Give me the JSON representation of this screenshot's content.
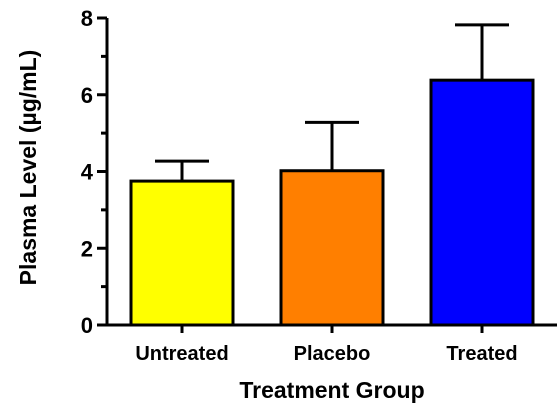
{
  "chart_data": {
    "type": "bar",
    "xlabel": "Treatment Group",
    "ylabel": "Plasma Level (µg/mL)",
    "categories": [
      "Untreated",
      "Placebo",
      "Treated"
    ],
    "values": [
      3.75,
      4.02,
      6.38
    ],
    "error_upper": [
      4.27,
      5.28,
      7.82
    ],
    "colors": [
      "#ffff00",
      "#ff7f00",
      "#0000ff"
    ],
    "ylim": [
      0,
      8
    ],
    "yticks": [
      0,
      2,
      4,
      6,
      8
    ],
    "yticks_labels": [
      "0",
      "2",
      "4",
      "6",
      "8"
    ],
    "grid": false
  }
}
